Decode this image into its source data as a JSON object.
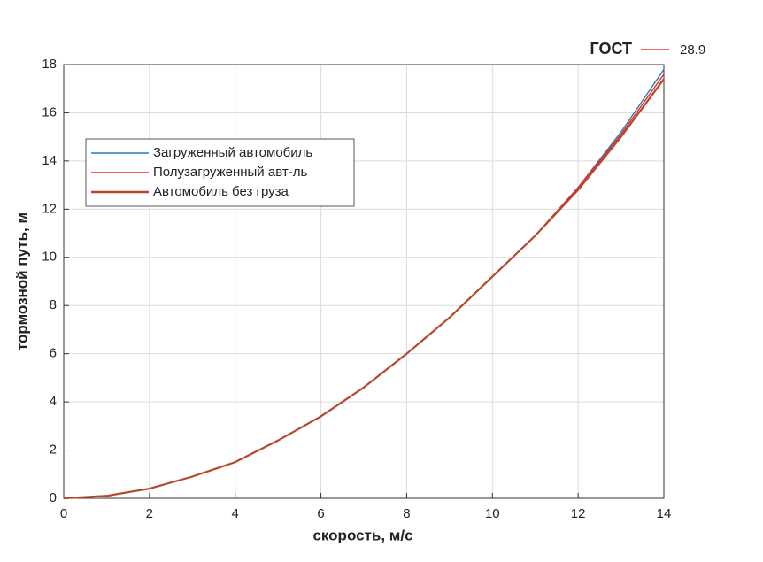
{
  "chart_data": {
    "type": "line",
    "x_label": "скорость, м/с",
    "y_label": "тормозной путь, м",
    "x": [
      0,
      1,
      2,
      3,
      4,
      5,
      6,
      7,
      8,
      9,
      10,
      11,
      12,
      13,
      14
    ],
    "series": [
      {
        "name": "Загруженный автомобиль",
        "color": "#2b7bb9",
        "values": [
          0,
          0.1,
          0.4,
          0.9,
          1.5,
          2.4,
          3.4,
          4.6,
          6.0,
          7.5,
          9.2,
          10.9,
          12.9,
          15.2,
          17.8
        ]
      },
      {
        "name": "Полузагруженный авт-ль",
        "color": "#e8262a",
        "values": [
          0,
          0.1,
          0.4,
          0.9,
          1.5,
          2.4,
          3.4,
          4.6,
          6.0,
          7.5,
          9.2,
          10.9,
          12.9,
          15.1,
          17.6
        ]
      },
      {
        "name": "Автомобиль без груза",
        "color": "#b5472a",
        "values": [
          0,
          0.1,
          0.4,
          0.9,
          1.5,
          2.4,
          3.4,
          4.6,
          6.0,
          7.5,
          9.2,
          10.9,
          12.8,
          15.0,
          17.4
        ]
      }
    ],
    "xlim": [
      0,
      14
    ],
    "xticks": [
      0,
      2,
      4,
      6,
      8,
      10,
      12,
      14
    ],
    "ylim": [
      0,
      18
    ],
    "yticks": [
      0,
      2,
      4,
      6,
      8,
      10,
      12,
      14,
      16,
      18
    ],
    "grid": true,
    "annotation": {
      "label": "ГОСТ",
      "value": 28.9,
      "color": "#e8343a"
    }
  }
}
